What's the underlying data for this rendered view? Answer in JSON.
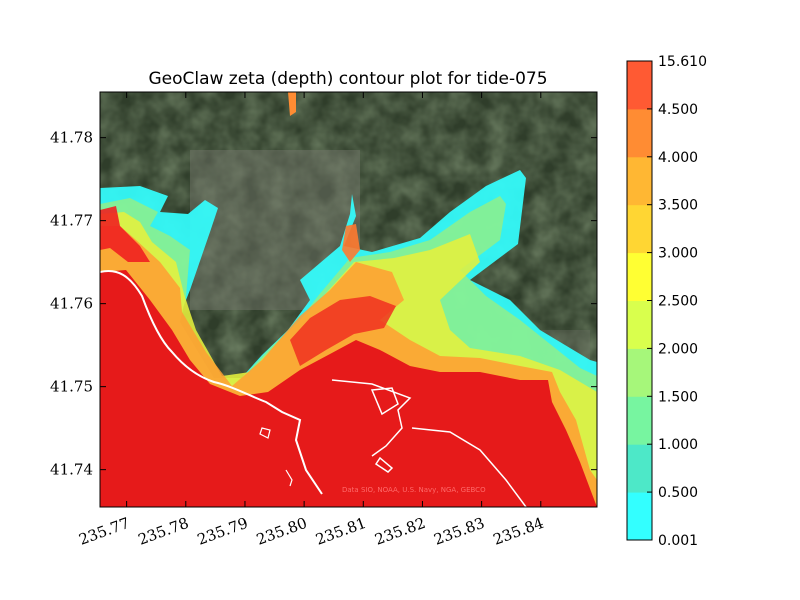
{
  "chart_data": {
    "type": "heatmap",
    "title": "GeoClaw zeta (depth) contour plot for tide-075",
    "xlabel": "",
    "ylabel": "",
    "xlim": [
      235.7655,
      235.8495
    ],
    "ylim": [
      41.7355,
      41.7855
    ],
    "x_ticks": [
      "235.77",
      "235.78",
      "235.79",
      "235.80",
      "235.81",
      "235.82",
      "235.83",
      "235.84"
    ],
    "x_tick_values": [
      235.77,
      235.78,
      235.79,
      235.8,
      235.81,
      235.82,
      235.83,
      235.84
    ],
    "y_ticks": [
      "41.74",
      "41.75",
      "41.76",
      "41.77",
      "41.78"
    ],
    "y_tick_values": [
      41.74,
      41.75,
      41.76,
      41.77,
      41.78
    ],
    "background": "satellite imagery",
    "attribution": "Data SIO, NOAA, U.S. Navy, NGA, GEBCO",
    "colorbar": {
      "levels": [
        "0.001",
        "0.500",
        "1.000",
        "1.500",
        "2.000",
        "2.500",
        "3.000",
        "3.500",
        "4.000",
        "4.500",
        "15.610"
      ],
      "colors": [
        "#33ffff",
        "#4de8c8",
        "#77f5a0",
        "#a6f77a",
        "#d9ff4d",
        "#ffff33",
        "#ffd633",
        "#ffb733",
        "#ff8c33",
        "#ff5a33",
        "#ff3333"
      ]
    }
  }
}
